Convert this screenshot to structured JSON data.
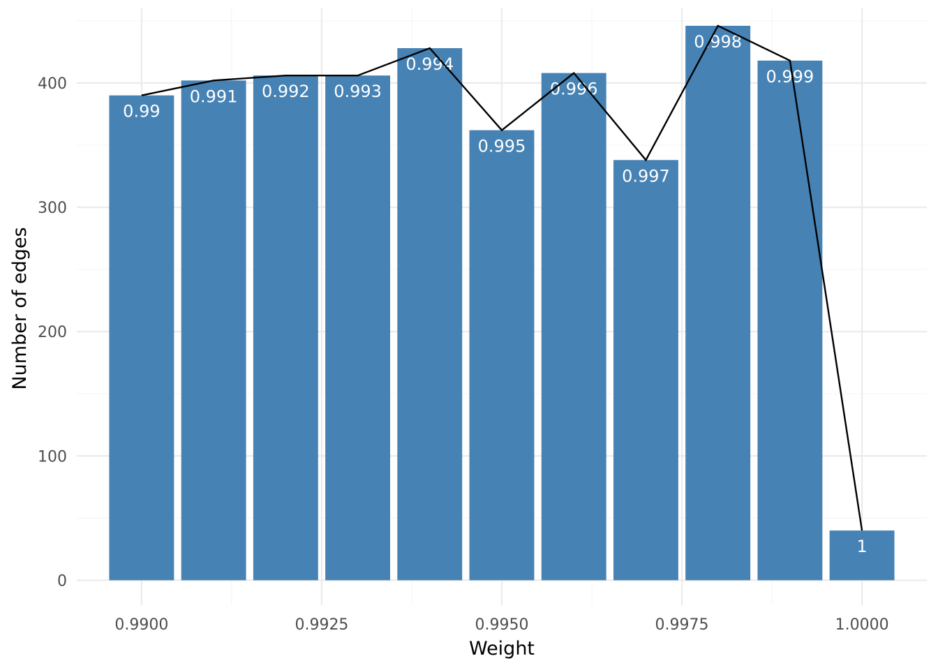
{
  "chart_data": {
    "type": "bar",
    "x": [
      0.99,
      0.991,
      0.992,
      0.993,
      0.994,
      0.995,
      0.996,
      0.997,
      0.998,
      0.999,
      1.0
    ],
    "values": [
      390,
      402,
      406,
      406,
      428,
      362,
      408,
      338,
      446,
      418,
      40
    ],
    "bar_labels": [
      "0.99",
      "0.991",
      "0.992",
      "0.993",
      "0.994",
      "0.995",
      "0.996",
      "0.997",
      "0.998",
      "0.999",
      "1"
    ],
    "title": "",
    "xlabel": "Weight",
    "ylabel": "Number of edges",
    "xlim": [
      0.9891,
      1.0009
    ],
    "ylim": [
      -20,
      460
    ],
    "x_ticks": [
      0.99,
      0.9925,
      0.995,
      0.9975,
      1.0
    ],
    "x_tick_labels": [
      "0.9900",
      "0.9925",
      "0.9950",
      "0.9975",
      "1.0000"
    ],
    "y_ticks": [
      0,
      100,
      200,
      300,
      400
    ],
    "y_tick_labels": [
      "0",
      "100",
      "200",
      "300",
      "400"
    ],
    "grid": true,
    "legend": "none",
    "overlay_line": true,
    "colors": {
      "bar": "#4682b4",
      "line": "#000000",
      "grid_major": "#ebebeb",
      "grid_minor": "#f5f5f5",
      "label": "#ffffff",
      "tick_text": "#4d4d4d"
    }
  }
}
